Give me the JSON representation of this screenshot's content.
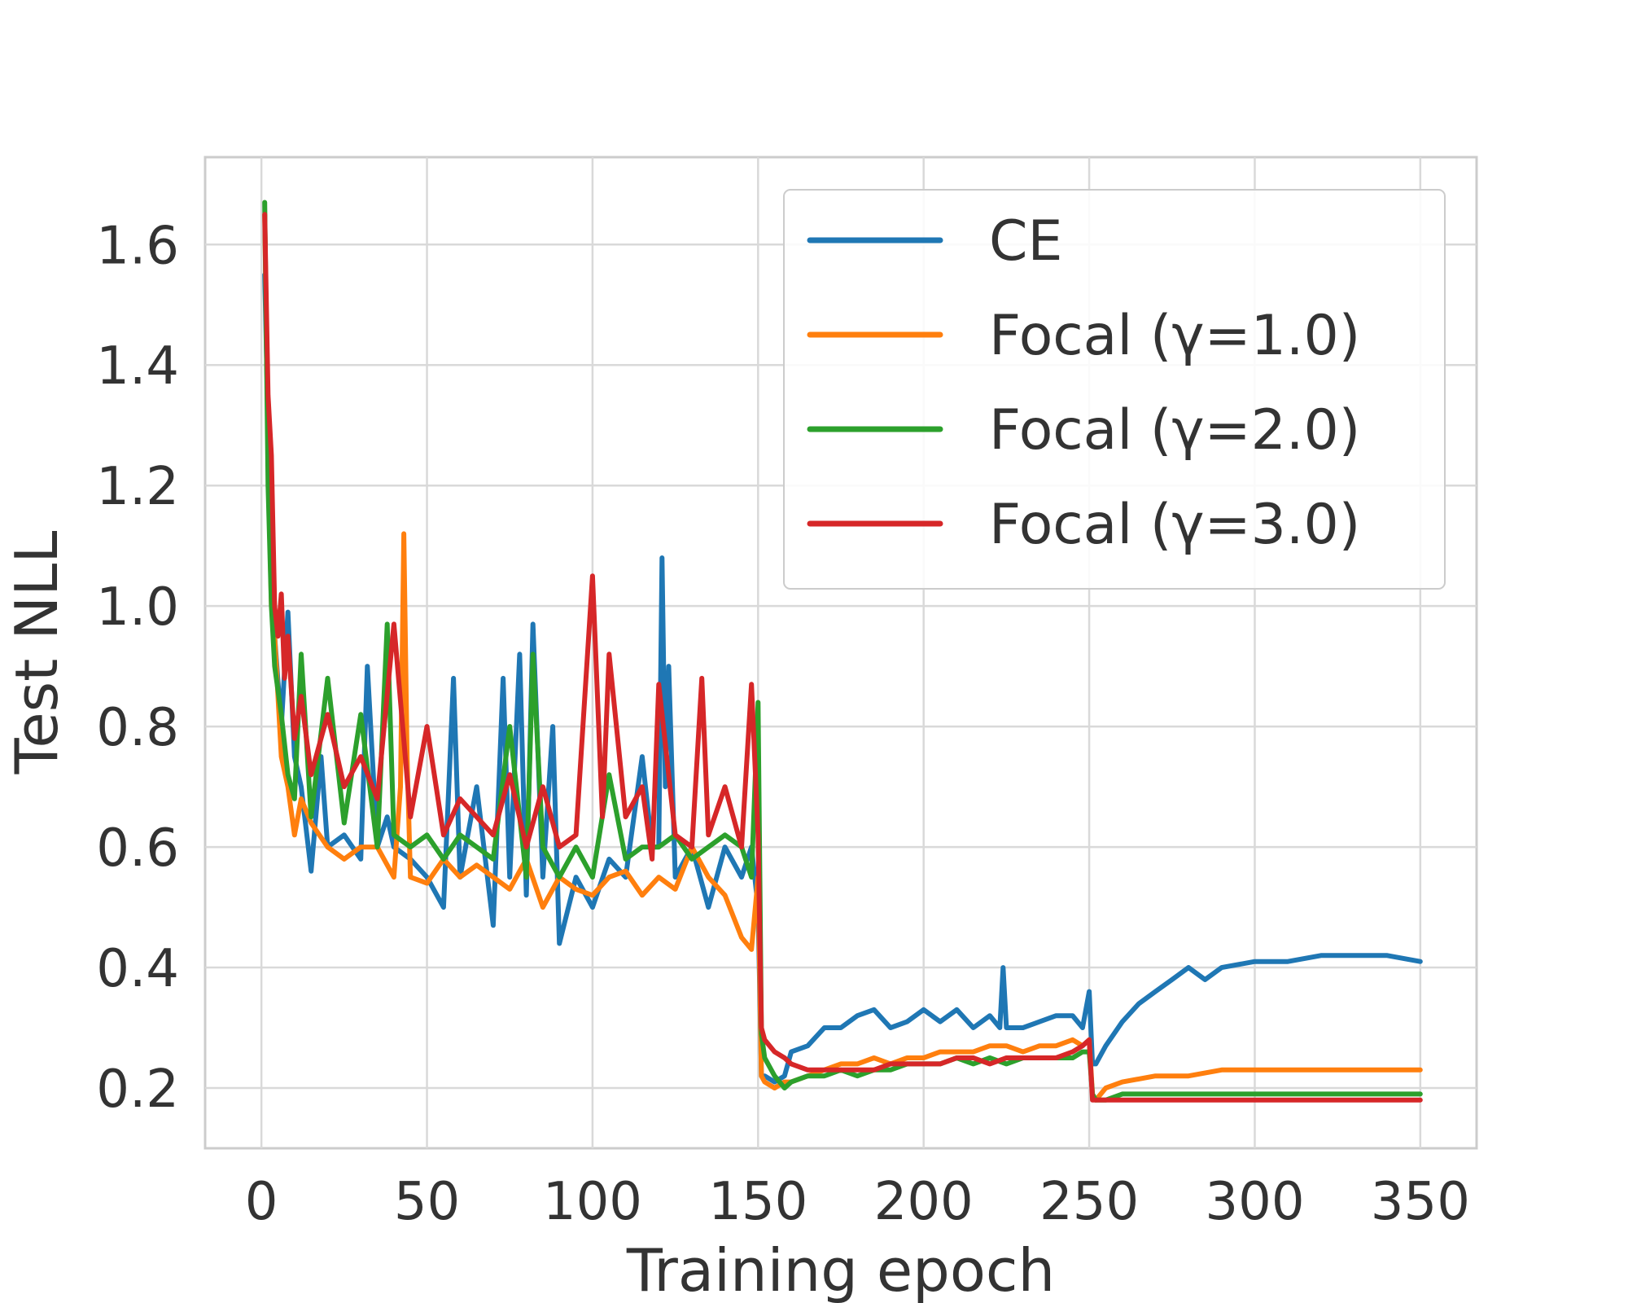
{
  "chart_data": {
    "type": "line",
    "title": "",
    "xlabel": "Training epoch",
    "ylabel": "Test NLL",
    "xlim": [
      -17,
      367
    ],
    "ylim": [
      0.1,
      1.745
    ],
    "xticks": [
      0,
      50,
      100,
      150,
      200,
      250,
      300,
      350
    ],
    "yticks": [
      0.2,
      0.4,
      0.6,
      0.8,
      1.0,
      1.2,
      1.4,
      1.6
    ],
    "xtick_labels": [
      "0",
      "50",
      "100",
      "150",
      "200",
      "250",
      "300",
      "350"
    ],
    "ytick_labels": [
      "0.2",
      "0.4",
      "0.6",
      "0.8",
      "1.0",
      "1.2",
      "1.4",
      "1.6"
    ],
    "grid": true,
    "legend_position": "top-right",
    "series": [
      {
        "name": "CE",
        "color": "#1f77b4",
        "x": [
          1,
          2,
          3,
          4,
          6,
          8,
          10,
          12,
          15,
          18,
          20,
          25,
          30,
          32,
          35,
          38,
          40,
          45,
          50,
          55,
          58,
          60,
          65,
          70,
          73,
          75,
          78,
          80,
          82,
          85,
          88,
          90,
          95,
          100,
          105,
          110,
          115,
          118,
          120,
          121,
          122,
          123,
          125,
          130,
          135,
          140,
          145,
          148,
          150,
          151,
          152,
          155,
          158,
          160,
          165,
          170,
          175,
          180,
          185,
          190,
          195,
          200,
          205,
          210,
          215,
          220,
          223,
          224,
          225,
          230,
          235,
          240,
          245,
          248,
          250,
          251,
          252,
          255,
          260,
          265,
          270,
          275,
          280,
          285,
          290,
          300,
          310,
          320,
          330,
          340,
          350
        ],
        "y": [
          1.55,
          1.3,
          1.05,
          0.95,
          0.8,
          0.99,
          0.75,
          0.7,
          0.56,
          0.75,
          0.6,
          0.62,
          0.58,
          0.9,
          0.6,
          0.65,
          0.6,
          0.58,
          0.55,
          0.5,
          0.88,
          0.55,
          0.7,
          0.47,
          0.88,
          0.55,
          0.92,
          0.52,
          0.97,
          0.55,
          0.8,
          0.44,
          0.55,
          0.5,
          0.58,
          0.55,
          0.75,
          0.6,
          0.6,
          1.08,
          0.7,
          0.9,
          0.55,
          0.6,
          0.5,
          0.6,
          0.55,
          0.6,
          0.5,
          0.22,
          0.22,
          0.21,
          0.22,
          0.26,
          0.27,
          0.3,
          0.3,
          0.32,
          0.33,
          0.3,
          0.31,
          0.33,
          0.31,
          0.33,
          0.3,
          0.32,
          0.3,
          0.4,
          0.3,
          0.3,
          0.31,
          0.32,
          0.32,
          0.3,
          0.36,
          0.24,
          0.24,
          0.27,
          0.31,
          0.34,
          0.36,
          0.38,
          0.4,
          0.38,
          0.4,
          0.41,
          0.41,
          0.42,
          0.42,
          0.42,
          0.41
        ]
      },
      {
        "name": "Focal (γ=1.0)",
        "color": "#ff7f0e",
        "x": [
          1,
          2,
          3,
          4,
          6,
          8,
          10,
          12,
          15,
          20,
          25,
          30,
          35,
          40,
          42,
          43,
          44,
          45,
          50,
          55,
          60,
          65,
          70,
          75,
          80,
          85,
          90,
          95,
          100,
          105,
          110,
          115,
          120,
          125,
          130,
          135,
          140,
          145,
          148,
          150,
          151,
          152,
          155,
          158,
          160,
          165,
          170,
          175,
          180,
          185,
          190,
          195,
          200,
          205,
          210,
          215,
          220,
          225,
          230,
          235,
          240,
          245,
          248,
          250,
          251,
          252,
          255,
          260,
          270,
          280,
          290,
          300,
          310,
          320,
          330,
          340,
          350
        ],
        "y": [
          1.65,
          1.25,
          1.0,
          0.95,
          0.75,
          0.7,
          0.62,
          0.68,
          0.64,
          0.6,
          0.58,
          0.6,
          0.6,
          0.55,
          0.7,
          1.12,
          0.75,
          0.55,
          0.54,
          0.58,
          0.55,
          0.57,
          0.55,
          0.53,
          0.58,
          0.5,
          0.55,
          0.53,
          0.52,
          0.55,
          0.56,
          0.52,
          0.55,
          0.53,
          0.6,
          0.55,
          0.52,
          0.45,
          0.43,
          0.55,
          0.22,
          0.21,
          0.2,
          0.21,
          0.21,
          0.22,
          0.23,
          0.24,
          0.24,
          0.25,
          0.24,
          0.25,
          0.25,
          0.26,
          0.26,
          0.26,
          0.27,
          0.27,
          0.26,
          0.27,
          0.27,
          0.28,
          0.27,
          0.28,
          0.19,
          0.18,
          0.2,
          0.21,
          0.22,
          0.22,
          0.23,
          0.23,
          0.23,
          0.23,
          0.23,
          0.23,
          0.23
        ]
      },
      {
        "name": "Focal (γ=2.0)",
        "color": "#2ca02c",
        "x": [
          1,
          2,
          3,
          4,
          6,
          8,
          10,
          12,
          15,
          20,
          25,
          30,
          35,
          38,
          40,
          45,
          50,
          55,
          60,
          65,
          70,
          75,
          80,
          82,
          85,
          90,
          95,
          100,
          105,
          110,
          115,
          120,
          125,
          130,
          135,
          140,
          145,
          148,
          150,
          151,
          152,
          155,
          158,
          160,
          165,
          170,
          175,
          180,
          185,
          190,
          195,
          200,
          205,
          210,
          215,
          220,
          225,
          230,
          235,
          240,
          245,
          248,
          250,
          251,
          252,
          255,
          260,
          270,
          280,
          290,
          300,
          310,
          320,
          330,
          340,
          350
        ],
        "y": [
          1.67,
          1.2,
          1.0,
          0.9,
          0.82,
          0.72,
          0.68,
          0.92,
          0.65,
          0.88,
          0.64,
          0.82,
          0.6,
          0.97,
          0.62,
          0.6,
          0.62,
          0.58,
          0.62,
          0.6,
          0.58,
          0.8,
          0.55,
          0.92,
          0.6,
          0.55,
          0.6,
          0.55,
          0.72,
          0.58,
          0.6,
          0.6,
          0.62,
          0.58,
          0.6,
          0.62,
          0.6,
          0.55,
          0.84,
          0.29,
          0.25,
          0.22,
          0.2,
          0.21,
          0.22,
          0.22,
          0.23,
          0.22,
          0.23,
          0.23,
          0.24,
          0.24,
          0.24,
          0.25,
          0.24,
          0.25,
          0.24,
          0.25,
          0.25,
          0.25,
          0.25,
          0.26,
          0.26,
          0.19,
          0.18,
          0.18,
          0.19,
          0.19,
          0.19,
          0.19,
          0.19,
          0.19,
          0.19,
          0.19,
          0.19,
          0.19
        ]
      },
      {
        "name": "Focal (γ=3.0)",
        "color": "#d62728",
        "x": [
          1,
          2,
          3,
          4,
          5,
          6,
          7,
          8,
          10,
          12,
          15,
          20,
          25,
          30,
          35,
          40,
          45,
          50,
          55,
          60,
          65,
          70,
          75,
          80,
          85,
          90,
          95,
          100,
          103,
          105,
          110,
          115,
          118,
          120,
          125,
          130,
          133,
          135,
          140,
          145,
          148,
          150,
          151,
          152,
          155,
          158,
          160,
          165,
          170,
          175,
          180,
          185,
          190,
          195,
          200,
          205,
          210,
          215,
          220,
          225,
          230,
          235,
          240,
          245,
          248,
          250,
          251,
          252,
          255,
          260,
          270,
          280,
          290,
          300,
          310,
          320,
          330,
          340,
          350
        ],
        "y": [
          1.65,
          1.35,
          1.25,
          1.0,
          0.95,
          1.02,
          0.88,
          0.95,
          0.78,
          0.85,
          0.72,
          0.82,
          0.7,
          0.75,
          0.68,
          0.97,
          0.65,
          0.8,
          0.62,
          0.68,
          0.65,
          0.62,
          0.72,
          0.6,
          0.7,
          0.6,
          0.62,
          1.05,
          0.65,
          0.92,
          0.65,
          0.7,
          0.58,
          0.87,
          0.62,
          0.6,
          0.88,
          0.62,
          0.7,
          0.6,
          0.87,
          0.62,
          0.3,
          0.28,
          0.26,
          0.25,
          0.24,
          0.23,
          0.23,
          0.23,
          0.23,
          0.23,
          0.24,
          0.24,
          0.24,
          0.24,
          0.25,
          0.25,
          0.24,
          0.25,
          0.25,
          0.25,
          0.25,
          0.26,
          0.27,
          0.28,
          0.18,
          0.18,
          0.18,
          0.18,
          0.18,
          0.18,
          0.18,
          0.18,
          0.18,
          0.18,
          0.18,
          0.18,
          0.18
        ]
      }
    ]
  }
}
